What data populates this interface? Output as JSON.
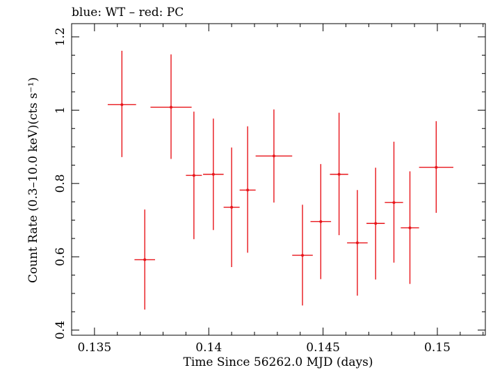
{
  "chart_data": {
    "type": "scatter",
    "title": "blue: WT – red: PC",
    "xlabel": "Time Since 56262.0 MJD (days)",
    "ylabel": "Count Rate (0.3–10.0 keV)(cts s⁻¹)",
    "xlim": [
      0.134,
      0.1521
    ],
    "ylim": [
      0.386,
      1.236
    ],
    "x_ticks": [
      {
        "value": 0.135,
        "label": "0.135"
      },
      {
        "value": 0.14,
        "label": "0.14"
      },
      {
        "value": 0.145,
        "label": "0.145"
      },
      {
        "value": 0.15,
        "label": "0.15"
      }
    ],
    "x_minor_step": 0.001,
    "y_ticks": [
      {
        "value": 0.4,
        "label": "0.4"
      },
      {
        "value": 0.6,
        "label": "0.6"
      },
      {
        "value": 0.8,
        "label": "0.8"
      },
      {
        "value": 1.0,
        "label": "1"
      },
      {
        "value": 1.2,
        "label": "1.2"
      }
    ],
    "y_minor_step": 0.05,
    "grid": false,
    "series": [
      {
        "color": "#e8141a",
        "points": [
          {
            "x": 0.1362,
            "y": 1.015,
            "xerr": 0.00062,
            "yerr_low": 0.143,
            "yerr_high": 0.147
          },
          {
            "x": 0.1372,
            "y": 0.592,
            "xerr": 0.00045,
            "yerr_low": 0.136,
            "yerr_high": 0.137
          },
          {
            "x": 0.13835,
            "y": 1.008,
            "xerr": 0.0009,
            "yerr_low": 0.141,
            "yerr_high": 0.144
          },
          {
            "x": 0.13935,
            "y": 0.822,
            "xerr": 0.00035,
            "yerr_low": 0.174,
            "yerr_high": 0.174
          },
          {
            "x": 0.1402,
            "y": 0.825,
            "xerr": 0.00045,
            "yerr_low": 0.152,
            "yerr_high": 0.152
          },
          {
            "x": 0.141,
            "y": 0.735,
            "xerr": 0.00035,
            "yerr_low": 0.163,
            "yerr_high": 0.163
          },
          {
            "x": 0.1417,
            "y": 0.782,
            "xerr": 0.00035,
            "yerr_low": 0.171,
            "yerr_high": 0.174
          },
          {
            "x": 0.14285,
            "y": 0.875,
            "xerr": 0.0008,
            "yerr_low": 0.127,
            "yerr_high": 0.127
          },
          {
            "x": 0.1441,
            "y": 0.604,
            "xerr": 0.00045,
            "yerr_low": 0.137,
            "yerr_high": 0.138
          },
          {
            "x": 0.1449,
            "y": 0.696,
            "xerr": 0.00045,
            "yerr_low": 0.157,
            "yerr_high": 0.157
          },
          {
            "x": 0.1457,
            "y": 0.825,
            "xerr": 0.0004,
            "yerr_low": 0.166,
            "yerr_high": 0.168
          },
          {
            "x": 0.1465,
            "y": 0.638,
            "xerr": 0.00045,
            "yerr_low": 0.144,
            "yerr_high": 0.144
          },
          {
            "x": 0.1473,
            "y": 0.691,
            "xerr": 0.0004,
            "yerr_low": 0.153,
            "yerr_high": 0.152
          },
          {
            "x": 0.1481,
            "y": 0.748,
            "xerr": 0.0004,
            "yerr_low": 0.164,
            "yerr_high": 0.166
          },
          {
            "x": 0.1488,
            "y": 0.679,
            "xerr": 0.0004,
            "yerr_low": 0.153,
            "yerr_high": 0.154
          },
          {
            "x": 0.14995,
            "y": 0.844,
            "xerr": 0.00075,
            "yerr_low": 0.124,
            "yerr_high": 0.126
          }
        ]
      }
    ]
  }
}
